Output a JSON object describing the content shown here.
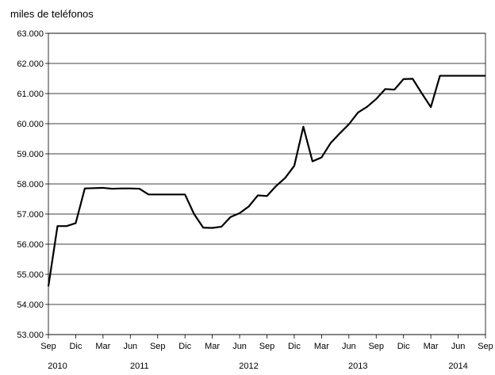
{
  "chart_data": {
    "type": "line",
    "title": "",
    "ylabel": "miles de teléfonos",
    "xlabel": "",
    "ylim": [
      53000,
      63000
    ],
    "yticks": [
      53000,
      54000,
      55000,
      56000,
      57000,
      58000,
      59000,
      60000,
      61000,
      62000,
      63000
    ],
    "ytick_labels": [
      "53.000",
      "54.000",
      "55.000",
      "56.000",
      "57.000",
      "58.000",
      "59.000",
      "60.000",
      "61.000",
      "62.000",
      "63.000"
    ],
    "grid": true,
    "x_range": [
      "2010-09",
      "2014-09"
    ],
    "month_ticks": [
      {
        "label": "Sep",
        "date": "2010-09"
      },
      {
        "label": "Dic",
        "date": "2010-12"
      },
      {
        "label": "Mar",
        "date": "2011-03"
      },
      {
        "label": "Jun",
        "date": "2011-06"
      },
      {
        "label": "Sep",
        "date": "2011-09"
      },
      {
        "label": "Dic",
        "date": "2011-12"
      },
      {
        "label": "Mar",
        "date": "2012-03"
      },
      {
        "label": "Jun",
        "date": "2012-06"
      },
      {
        "label": "Sep",
        "date": "2012-09"
      },
      {
        "label": "Dic",
        "date": "2012-12"
      },
      {
        "label": "Mar",
        "date": "2013-03"
      },
      {
        "label": "Jun",
        "date": "2013-06"
      },
      {
        "label": "Sep",
        "date": "2013-09"
      },
      {
        "label": "Dic",
        "date": "2013-12"
      },
      {
        "label": "Mar",
        "date": "2014-03"
      },
      {
        "label": "Jun",
        "date": "2014-06"
      },
      {
        "label": "Sep",
        "date": "2014-09"
      }
    ],
    "year_labels": [
      {
        "label": "2010",
        "date": "2010-10"
      },
      {
        "label": "2011",
        "date": "2011-07"
      },
      {
        "label": "2012",
        "date": "2012-07"
      },
      {
        "label": "2013",
        "date": "2013-07"
      },
      {
        "label": "2014",
        "date": "2014-06"
      }
    ],
    "series": [
      {
        "color": "#000000",
        "x": [
          "2010-09",
          "2010-10",
          "2010-11",
          "2010-12",
          "2011-01",
          "2011-02",
          "2011-03",
          "2011-04",
          "2011-05",
          "2011-06",
          "2011-07",
          "2011-08",
          "2011-09",
          "2011-10",
          "2011-11",
          "2011-12",
          "2012-01",
          "2012-02",
          "2012-03",
          "2012-04",
          "2012-05",
          "2012-06",
          "2012-07",
          "2012-08",
          "2012-09",
          "2012-10",
          "2012-11",
          "2012-12",
          "2013-01",
          "2013-02",
          "2013-03",
          "2013-04",
          "2013-05",
          "2013-06",
          "2013-07",
          "2013-08",
          "2013-09",
          "2013-10",
          "2013-11",
          "2013-12",
          "2014-01",
          "2014-02",
          "2014-03",
          "2014-04",
          "2014-05",
          "2014-06",
          "2014-07",
          "2014-08",
          "2014-09"
        ],
        "values": [
          54600,
          56600,
          56600,
          56700,
          57850,
          57860,
          57870,
          57840,
          57850,
          57850,
          57840,
          57650,
          57650,
          57650,
          57650,
          57650,
          57000,
          56550,
          56540,
          56580,
          56900,
          57030,
          57250,
          57620,
          57600,
          57930,
          58200,
          58600,
          59900,
          58750,
          58880,
          59360,
          59680,
          59980,
          60370,
          60560,
          60820,
          61150,
          61130,
          61480,
          61490,
          61010,
          60550,
          61590,
          61590,
          61590,
          61590,
          61590,
          61590
        ]
      }
    ]
  }
}
